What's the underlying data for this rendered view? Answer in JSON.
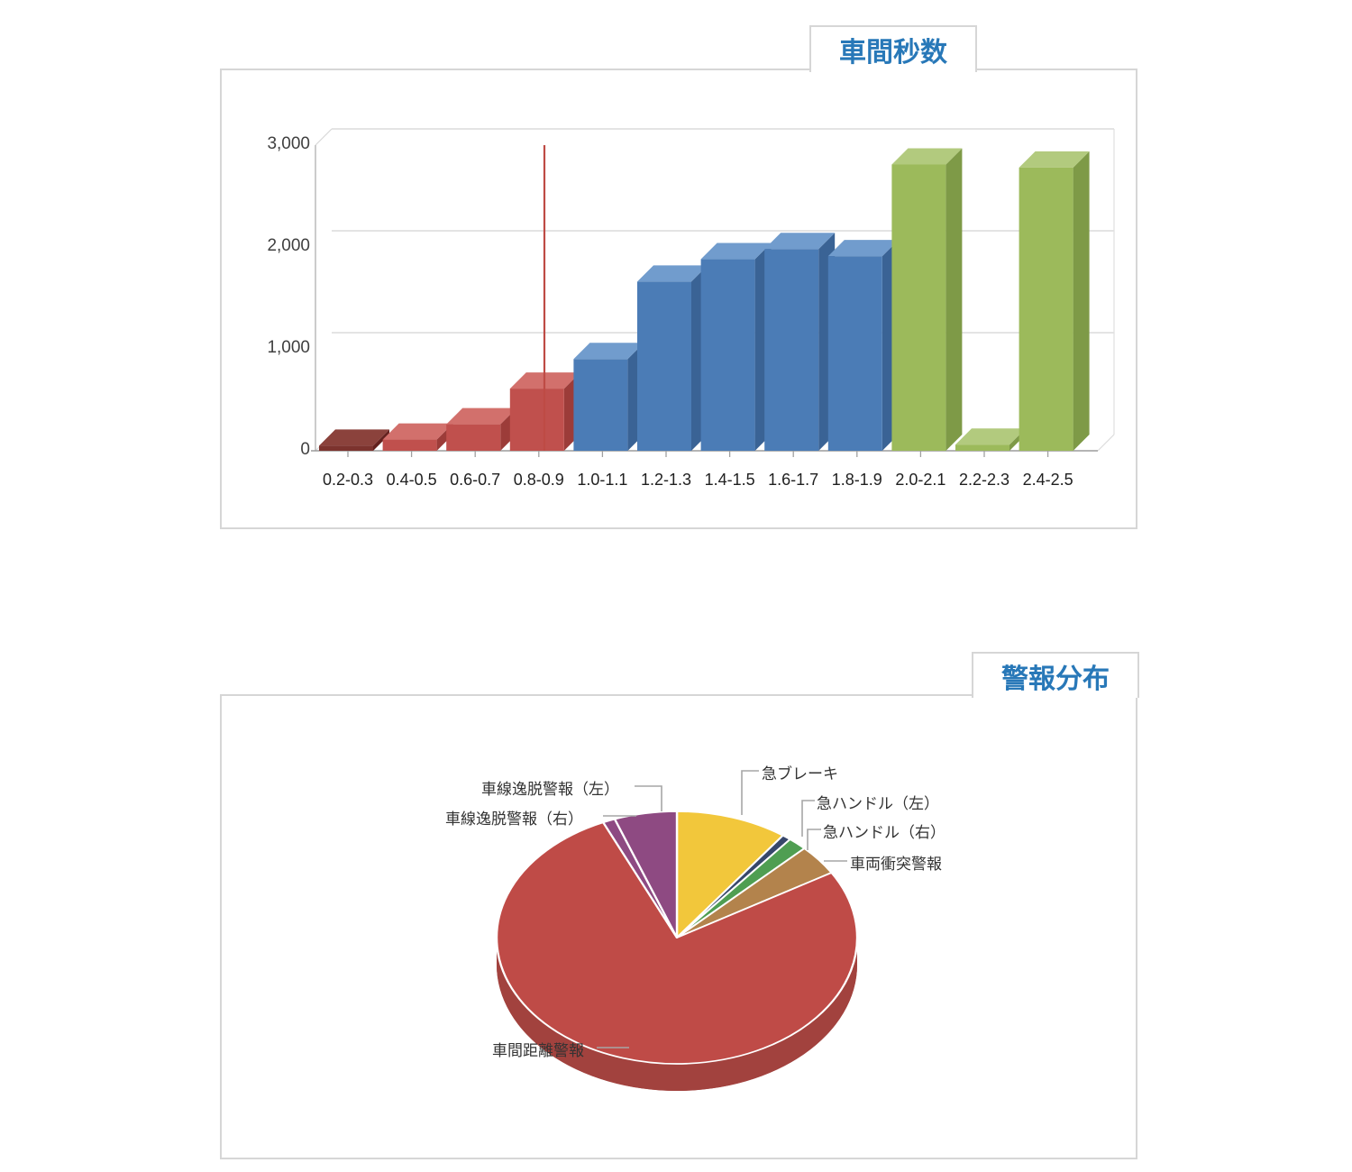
{
  "ui": {
    "accent_text_color": "#2878b8",
    "panel_border_color": "#d6d6d6",
    "callout_line_color": "#a6a6a6",
    "axis_text_color": "#404040",
    "background": "#ffffff"
  },
  "chart_data": [
    {
      "type": "bar",
      "style": "3d-column",
      "title": "車間秒数",
      "categories": [
        "0.2-0.3",
        "0.4-0.5",
        "0.6-0.7",
        "0.8-0.9",
        "1.0-1.1",
        "1.2-1.3",
        "1.4-1.5",
        "1.6-1.7",
        "1.8-1.9",
        "2.0-2.1",
        "2.2-2.3",
        "2.4-2.5"
      ],
      "values": [
        50,
        110,
        260,
        610,
        900,
        1660,
        1880,
        1980,
        1910,
        2810,
        60,
        2780
      ],
      "bar_color_keys": [
        "maroon",
        "red",
        "red",
        "red",
        "blue",
        "blue",
        "blue",
        "blue",
        "blue",
        "green",
        "green",
        "green"
      ],
      "xlabel": "",
      "ylabel": "",
      "ylim": [
        0,
        3000
      ],
      "ytick_values": [
        0,
        1000,
        2000,
        3000
      ],
      "ytick_labels": [
        "0",
        "1,000",
        "2,000",
        "3,000"
      ],
      "grid": true,
      "legend": "none",
      "marker_line": {
        "at_category": "0.8-0.9",
        "top_value": 3000,
        "color": "#be4b45"
      },
      "colors": {
        "maroon": {
          "front": "#7c332e",
          "top": "#8b423c",
          "side": "#63211e"
        },
        "red": {
          "front": "#c0504d",
          "top": "#d2706c",
          "side": "#9c3c39"
        },
        "blue": {
          "front": "#4b7cb6",
          "top": "#719ccd",
          "side": "#3a6395"
        },
        "green": {
          "front": "#9cba5b",
          "top": "#b2ca7e",
          "side": "#7e9a47"
        }
      }
    },
    {
      "type": "pie",
      "style": "3d-pie",
      "title": "警報分布",
      "labels": [
        "急ブレーキ",
        "急ハンドル（左）",
        "急ハンドル（右）",
        "車両衝突警報",
        "車間距離警報",
        "車線逸脱警報（右）",
        "車線逸脱警報（左）"
      ],
      "values_percent": [
        10.0,
        0.8,
        1.7,
        3.9,
        76.9,
        1.1,
        5.6
      ],
      "colors": [
        "#f2c73b",
        "#37476b",
        "#4f9e52",
        "#b3834c",
        "#bf4b47",
        "#8e4a82",
        "#8e4a82"
      ],
      "rim_color": "#a2423e",
      "start_angle_deg": 0,
      "direction": "clockwise",
      "legend": "callout-labels"
    }
  ]
}
